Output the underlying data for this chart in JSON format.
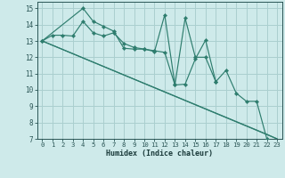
{
  "xlabel": "Humidex (Indice chaleur)",
  "background_color": "#ceeaea",
  "line_color": "#2e7d6e",
  "grid_color": "#aacfcf",
  "xlim": [
    -0.5,
    23.5
  ],
  "ylim": [
    7,
    15.4
  ],
  "xticks": [
    0,
    1,
    2,
    3,
    4,
    5,
    6,
    7,
    8,
    9,
    10,
    11,
    12,
    13,
    14,
    15,
    16,
    17,
    18,
    19,
    20,
    21,
    22,
    23
  ],
  "yticks": [
    7,
    8,
    9,
    10,
    11,
    12,
    13,
    14,
    15
  ],
  "series1_x": [
    0,
    1,
    2,
    3,
    4,
    5,
    6,
    7,
    8,
    9,
    10,
    11,
    12,
    13,
    14,
    15,
    16,
    17,
    18,
    19,
    20,
    21,
    22
  ],
  "series1_y": [
    13.0,
    13.35,
    13.35,
    13.3,
    14.2,
    13.5,
    13.3,
    13.5,
    12.85,
    12.6,
    12.5,
    12.4,
    12.3,
    10.3,
    10.35,
    11.9,
    13.05,
    10.5,
    11.2,
    9.8,
    9.3,
    9.3,
    7.0
  ],
  "series2_x": [
    0,
    4,
    5,
    6,
    7,
    8,
    9,
    10,
    11,
    12,
    13,
    14,
    15,
    16,
    17
  ],
  "series2_y": [
    13.0,
    15.0,
    14.2,
    13.9,
    13.6,
    12.55,
    12.5,
    12.5,
    12.35,
    14.6,
    10.3,
    14.4,
    12.0,
    12.0,
    10.5
  ],
  "series3_x": [
    0,
    1,
    2,
    3,
    4,
    5,
    6,
    7,
    8,
    9,
    10,
    11,
    12,
    13,
    14,
    15,
    16,
    17,
    18,
    19,
    20,
    21,
    22,
    23
  ],
  "series3_y": [
    13.0,
    12.74,
    12.48,
    12.22,
    11.96,
    11.7,
    11.44,
    11.18,
    10.92,
    10.66,
    10.4,
    10.14,
    9.88,
    9.62,
    9.36,
    9.1,
    8.84,
    8.58,
    8.32,
    8.06,
    7.8,
    7.54,
    7.28,
    7.0
  ],
  "series4_x": [
    0,
    23
  ],
  "series4_y": [
    13.0,
    7.0
  ]
}
